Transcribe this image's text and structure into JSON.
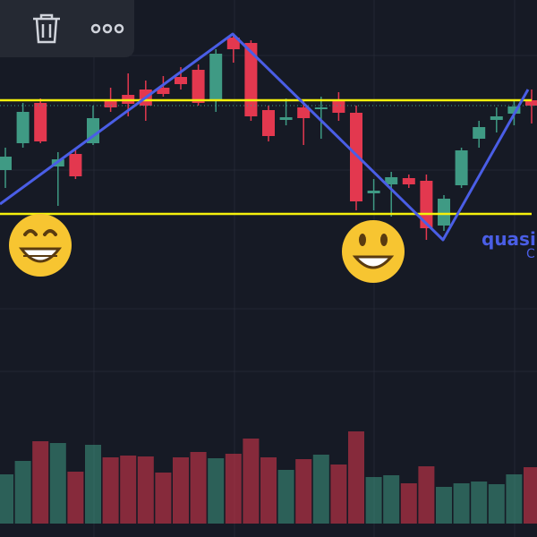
{
  "chart_data": {
    "type": "candlestick",
    "open": [
      410,
      440,
      485,
      414,
      428,
      440,
      488,
      494,
      500,
      502,
      514,
      522,
      488,
      558,
      552,
      477,
      466,
      480,
      478,
      488,
      474,
      384,
      394,
      401,
      398,
      348,
      393,
      445,
      466,
      473,
      488
    ],
    "high": [
      435,
      485,
      490,
      430,
      435,
      482,
      502,
      518,
      510,
      515,
      525,
      528,
      545,
      562,
      555,
      482,
      490,
      488,
      492,
      497,
      482,
      400,
      408,
      405,
      405,
      382,
      435,
      465,
      480,
      487,
      500
    ],
    "low": [
      390,
      435,
      440,
      370,
      400,
      438,
      475,
      470,
      465,
      492,
      500,
      482,
      475,
      530,
      465,
      442,
      460,
      438,
      445,
      465,
      365,
      365,
      358,
      390,
      332,
      342,
      390,
      435,
      452,
      460,
      462
    ],
    "close": [
      425,
      475,
      442,
      422,
      403,
      468,
      480,
      484,
      482,
      495,
      506,
      485,
      540,
      545,
      470,
      448,
      469,
      468,
      480,
      474,
      375,
      387,
      402,
      394,
      345,
      378,
      432,
      458,
      470,
      481,
      482
    ],
    "volume": [
      55,
      70,
      92,
      90,
      58,
      88,
      74,
      76,
      75,
      57,
      74,
      80,
      73,
      78,
      95,
      74,
      60,
      72,
      77,
      66,
      103,
      52,
      54,
      45,
      64,
      41,
      45,
      47,
      44,
      55,
      63
    ],
    "up_color": "#3f9a84",
    "down_color": "#e3384f",
    "ylim": [
      0,
      600
    ],
    "levels": [
      488,
      361
    ],
    "level_color": "#f5f10c",
    "current_price": 482,
    "annotations": [
      "quasin",
      "C"
    ]
  }
}
